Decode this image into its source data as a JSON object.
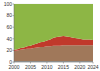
{
  "chart_data": {
    "type": "area",
    "stacked": true,
    "x": [
      2000,
      2001,
      2002,
      2003,
      2004,
      2005,
      2006,
      2007,
      2008,
      2009,
      2010,
      2011,
      2012,
      2013,
      2014,
      2015,
      2016,
      2017,
      2018,
      2019,
      2020,
      2021,
      2022,
      2023,
      2024
    ],
    "series": [
      {
        "color": "#2980b9",
        "values": [
          1,
          1,
          1,
          1,
          1,
          1,
          1,
          1,
          1,
          1,
          1,
          1,
          1,
          1,
          1,
          1,
          1,
          1,
          1,
          1,
          1,
          1,
          1,
          1,
          1
        ]
      },
      {
        "color": "#a0785a",
        "values": [
          18,
          19,
          20,
          21,
          22,
          22,
          23,
          24,
          25,
          25,
          26,
          26,
          27,
          27,
          27,
          28,
          28,
          28,
          28,
          28,
          28,
          28,
          28,
          28,
          28
        ]
      },
      {
        "color": "#c0392b",
        "values": [
          2,
          2,
          3,
          3,
          4,
          5,
          6,
          7,
          8,
          9,
          10,
          12,
          14,
          15,
          16,
          16,
          15,
          14,
          13,
          12,
          11,
          10,
          10,
          10,
          9
        ]
      },
      {
        "color": "#8db645",
        "values": [
          79,
          78,
          76,
          75,
          73,
          72,
          70,
          68,
          66,
          65,
          63,
          61,
          58,
          57,
          56,
          55,
          56,
          57,
          58,
          59,
          60,
          61,
          61,
          61,
          62
        ]
      }
    ],
    "xlim": [
      2000,
      2024
    ],
    "xticks": [
      2000,
      2005,
      2010,
      2015,
      2020,
      2024
    ],
    "ylim": [
      0,
      100
    ],
    "yticks": [
      0,
      20,
      40,
      60,
      80,
      100
    ],
    "grid": true
  }
}
